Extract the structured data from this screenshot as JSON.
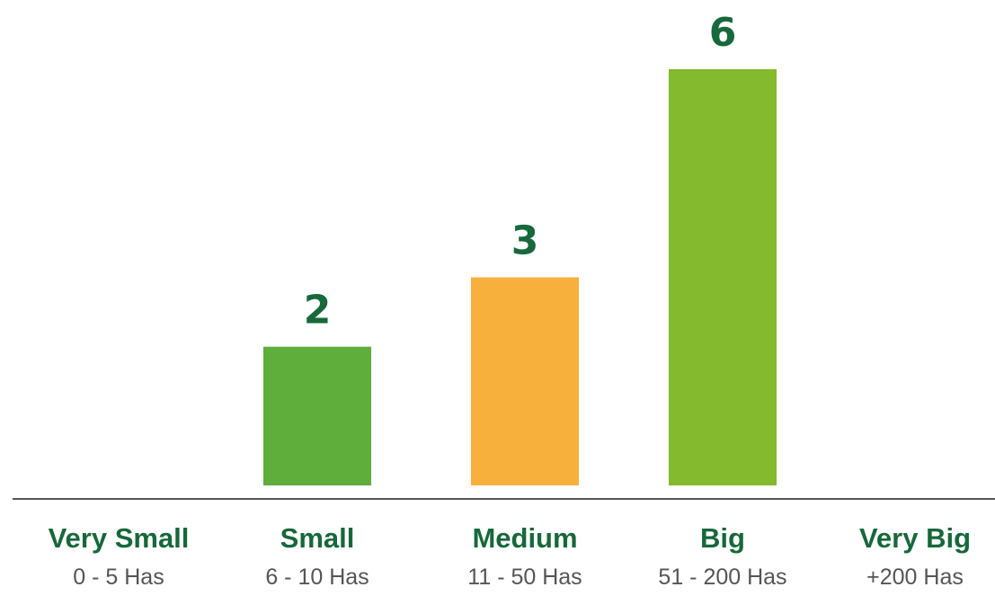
{
  "chart_data": {
    "type": "bar",
    "categories": [
      "Very Small",
      "Small",
      "Medium",
      "Big",
      "Very Big"
    ],
    "subcategories": [
      "0 - 5 Has",
      "6 - 10 Has",
      "11 - 50 Has",
      "51 - 200 Has",
      "+200 Has"
    ],
    "values": [
      0,
      2,
      3,
      6,
      0
    ],
    "data_labels": [
      "",
      "2",
      "3",
      "6",
      ""
    ],
    "bar_colors": [
      "#5fad3b",
      "#5fad3b",
      "#f8b03d",
      "#84ba2d",
      "#84ba2d"
    ],
    "title": "",
    "xlabel": "",
    "ylabel": "",
    "ylim": [
      0,
      6
    ],
    "grid": false,
    "y_axis_visible": false
  },
  "colors": {
    "label_dark_green": "#17683a",
    "subtitle_gray": "#555555",
    "axis_line": "#555555"
  }
}
